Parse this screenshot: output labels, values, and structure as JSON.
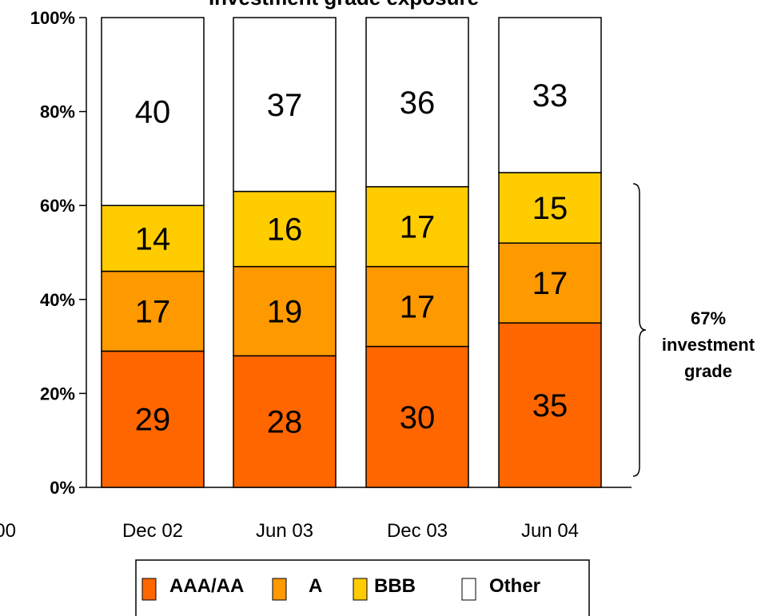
{
  "chart_data": {
    "type": "bar",
    "stacked": true,
    "title": "Investment grade exposure",
    "categories": [
      "Dec 02",
      "Jun 03",
      "Dec 03",
      "Jun 04"
    ],
    "clipped_tick_fragment": "00",
    "series": [
      {
        "name": "AAA/AA",
        "values": [
          29,
          28,
          30,
          35
        ],
        "color": "#FF6600"
      },
      {
        "name": "A",
        "values": [
          17,
          19,
          17,
          17
        ],
        "color": "#FF9900"
      },
      {
        "name": "BBB",
        "values": [
          14,
          16,
          17,
          15
        ],
        "color": "#FFCC00"
      },
      {
        "name": "Other",
        "values": [
          40,
          37,
          36,
          33
        ],
        "color": "#FFFFFF"
      }
    ],
    "y_ticks": [
      "0%",
      "20%",
      "40%",
      "60%",
      "80%",
      "100%"
    ],
    "ylim": [
      0,
      100
    ],
    "grid": false,
    "legend_position": "bottom",
    "annotation": {
      "lines": [
        "67%",
        "investment",
        "grade"
      ],
      "bracket_span": [
        0,
        67
      ]
    }
  }
}
